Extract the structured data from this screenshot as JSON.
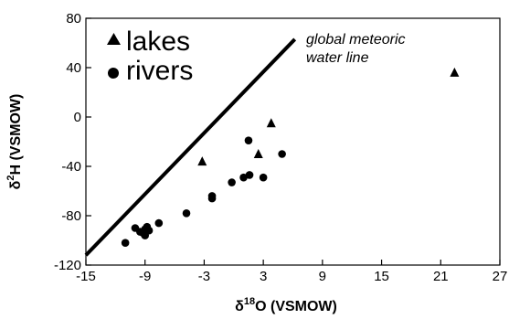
{
  "chart_data": {
    "type": "scatter",
    "xlabel_symbol": "δ",
    "xlabel_sup": "18",
    "xlabel_rest": "O (VSMOW)",
    "ylabel_symbol": "δ",
    "ylabel_sup": "2",
    "ylabel_rest": "H (VSMOW)",
    "xlim": [
      -15,
      27
    ],
    "ylim": [
      -120,
      80
    ],
    "xticks": [
      -15,
      -9,
      -3,
      3,
      9,
      15,
      21,
      27
    ],
    "yticks": [
      -120,
      -80,
      -40,
      0,
      40,
      80
    ],
    "legend_position": "top-left",
    "series": [
      {
        "name": "lakes",
        "marker": "triangle",
        "color": "#000000",
        "points": [
          {
            "x": -3.2,
            "y": -36
          },
          {
            "x": 3.8,
            "y": -5
          },
          {
            "x": 2.5,
            "y": -30
          },
          {
            "x": 22.4,
            "y": 36
          }
        ]
      },
      {
        "name": "rivers",
        "marker": "circle",
        "color": "#000000",
        "points": [
          {
            "x": -11.0,
            "y": -102
          },
          {
            "x": -10.0,
            "y": -90
          },
          {
            "x": -9.5,
            "y": -93
          },
          {
            "x": -9.2,
            "y": -94
          },
          {
            "x": -9.0,
            "y": -96
          },
          {
            "x": -9.0,
            "y": -91
          },
          {
            "x": -8.8,
            "y": -89
          },
          {
            "x": -8.6,
            "y": -92
          },
          {
            "x": -7.6,
            "y": -86
          },
          {
            "x": -4.8,
            "y": -78
          },
          {
            "x": -2.2,
            "y": -64
          },
          {
            "x": -2.2,
            "y": -66
          },
          {
            "x": -0.2,
            "y": -53
          },
          {
            "x": 1.0,
            "y": -49
          },
          {
            "x": 1.5,
            "y": -19
          },
          {
            "x": 1.6,
            "y": -47
          },
          {
            "x": 3.0,
            "y": -49
          },
          {
            "x": 4.9,
            "y": -30
          }
        ]
      }
    ],
    "reference_line": {
      "label_line1": "global meteoric",
      "label_line2": "water line",
      "x": [
        -15,
        6.2
      ],
      "y": [
        -112,
        63
      ]
    }
  }
}
